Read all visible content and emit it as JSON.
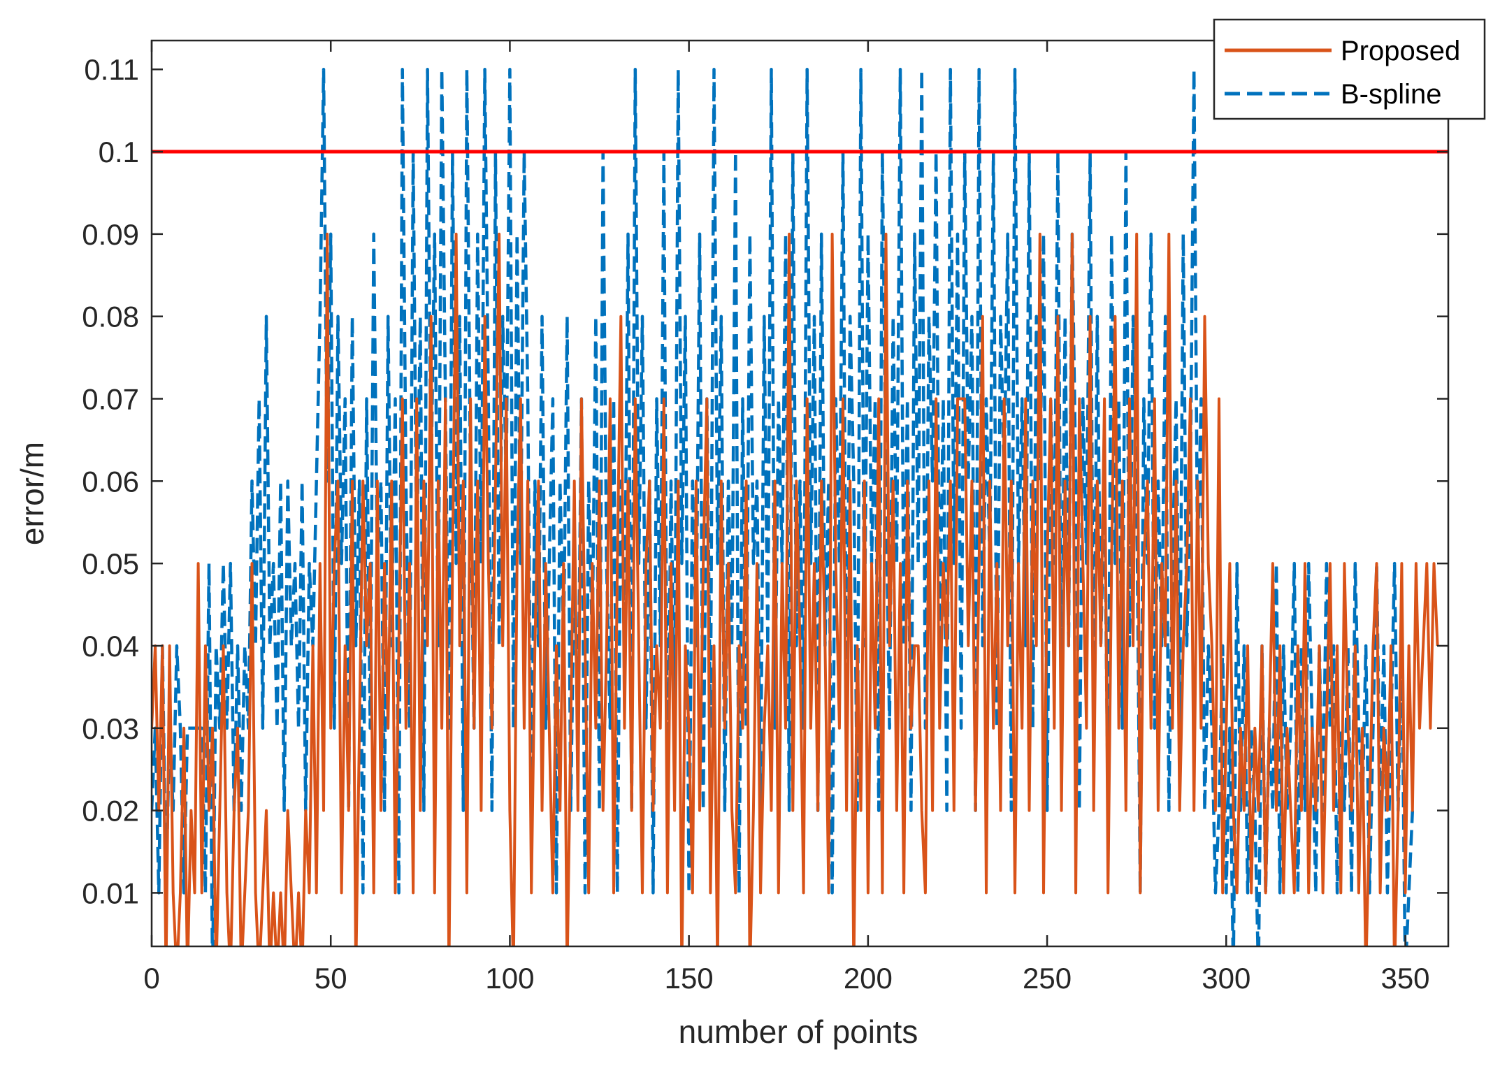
{
  "chart_data": {
    "type": "line",
    "title": "",
    "xlabel": "number of points",
    "ylabel": "error/m",
    "xlim": [
      0,
      362
    ],
    "ylim": [
      0.0035,
      0.1135
    ],
    "xticks": [
      0,
      50,
      100,
      150,
      200,
      250,
      300,
      350
    ],
    "xtick_labels": [
      "0",
      "50",
      "100",
      "150",
      "200",
      "250",
      "300",
      "350"
    ],
    "yticks": [
      0.01,
      0.02,
      0.03,
      0.04,
      0.05,
      0.06,
      0.07,
      0.08,
      0.09,
      0.1,
      0.11
    ],
    "ytick_labels": [
      "0.01",
      "0.02",
      "0.03",
      "0.04",
      "0.05",
      "0.06",
      "0.07",
      "0.08",
      "0.09",
      "0.1",
      "0.11"
    ],
    "grid": false,
    "legend_position": "top-right",
    "colors": {
      "proposed": "#D95319",
      "bspline": "#0072BD",
      "threshold": "#FF0000",
      "axis": "#262626"
    },
    "threshold": {
      "value": 0.1
    },
    "series": [
      {
        "name": "Proposed",
        "style": "solid",
        "values": [
          0.03,
          0.04,
          0.02,
          0.04,
          0.0,
          0.04,
          0.01,
          0.0,
          0.01,
          0.03,
          0.0,
          0.02,
          0.01,
          0.05,
          0.01,
          0.04,
          0.02,
          0.03,
          0.0,
          0.02,
          0.04,
          0.01,
          0.0,
          0.02,
          0.03,
          0.0,
          0.01,
          0.02,
          0.05,
          0.01,
          0.0,
          0.01,
          0.02,
          0.0,
          0.01,
          0.0,
          0.01,
          0.0,
          0.02,
          0.01,
          0.0,
          0.01,
          0.0,
          0.02,
          0.01,
          0.04,
          0.01,
          0.05,
          0.02,
          0.09,
          0.03,
          0.05,
          0.06,
          0.01,
          0.04,
          0.02,
          0.06,
          0.0,
          0.03,
          0.06,
          0.04,
          0.05,
          0.01,
          0.06,
          0.02,
          0.05,
          0.03,
          0.06,
          0.01,
          0.04,
          0.07,
          0.03,
          0.05,
          0.01,
          0.07,
          0.02,
          0.06,
          0.04,
          0.08,
          0.01,
          0.06,
          0.03,
          0.07,
          0.0,
          0.05,
          0.09,
          0.04,
          0.06,
          0.01,
          0.07,
          0.03,
          0.06,
          0.02,
          0.08,
          0.05,
          0.03,
          0.06,
          0.09,
          0.04,
          0.07,
          0.02,
          0.0,
          0.05,
          0.07,
          0.03,
          0.06,
          0.01,
          0.04,
          0.06,
          0.02,
          0.05,
          0.03,
          0.01,
          0.04,
          0.02,
          0.05,
          0.0,
          0.03,
          0.06,
          0.02,
          0.07,
          0.04,
          0.01,
          0.05,
          0.03,
          0.06,
          0.02,
          0.04,
          0.07,
          0.01,
          0.05,
          0.08,
          0.03,
          0.06,
          0.02,
          0.07,
          0.04,
          0.01,
          0.05,
          0.06,
          0.02,
          0.04,
          0.03,
          0.07,
          0.01,
          0.05,
          0.02,
          0.06,
          0.0,
          0.04,
          0.03,
          0.01,
          0.06,
          0.02,
          0.05,
          0.07,
          0.01,
          0.04,
          0.0,
          0.06,
          0.03,
          0.05,
          0.02,
          0.01,
          0.04,
          0.03,
          0.06,
          0.0,
          0.02,
          0.05,
          0.01,
          0.03,
          0.04,
          0.02,
          0.06,
          0.01,
          0.05,
          0.03,
          0.09,
          0.02,
          0.06,
          0.04,
          0.01,
          0.07,
          0.03,
          0.05,
          0.02,
          0.06,
          0.04,
          0.01,
          0.09,
          0.05,
          0.03,
          0.07,
          0.02,
          0.06,
          0.0,
          0.04,
          0.02,
          0.06,
          0.01,
          0.05,
          0.03,
          0.07,
          0.01,
          0.09,
          0.04,
          0.06,
          0.02,
          0.05,
          0.01,
          0.06,
          0.03,
          0.04,
          0.04,
          0.02,
          0.01,
          0.06,
          0.02,
          0.07,
          0.03,
          0.05,
          0.04,
          0.06,
          0.02,
          0.07,
          0.07,
          0.07,
          0.04,
          0.06,
          0.02,
          0.05,
          0.08,
          0.01,
          0.06,
          0.03,
          0.05,
          0.02,
          0.07,
          0.04,
          0.06,
          0.01,
          0.05,
          0.03,
          0.07,
          0.02,
          0.06,
          0.04,
          0.09,
          0.01,
          0.05,
          0.07,
          0.03,
          0.08,
          0.02,
          0.06,
          0.04,
          0.09,
          0.01,
          0.07,
          0.05,
          0.03,
          0.08,
          0.02,
          0.06,
          0.04,
          0.07,
          0.01,
          0.05,
          0.08,
          0.03,
          0.06,
          0.02,
          0.07,
          0.04,
          0.09,
          0.01,
          0.05,
          0.06,
          0.03,
          0.07,
          0.02,
          0.05,
          0.04,
          0.09,
          0.03,
          0.06,
          0.02,
          0.04,
          0.05,
          0.07,
          0.02,
          0.06,
          0.03,
          0.08,
          0.05,
          0.04,
          0.02,
          0.07,
          0.01,
          0.03,
          0.05,
          0.02,
          0.01,
          0.03,
          0.02,
          0.04,
          0.01,
          0.03,
          0.02,
          0.04,
          0.01,
          0.03,
          0.05,
          0.02,
          0.04,
          0.01,
          0.03,
          0.02,
          0.01,
          0.04,
          0.02,
          0.05,
          0.01,
          0.03,
          0.02,
          0.04,
          0.01,
          0.03,
          0.05,
          0.02,
          0.04,
          0.01,
          0.05,
          0.03,
          0.02,
          0.04,
          0.01,
          0.03,
          0.0,
          0.02,
          0.04,
          0.05,
          0.01,
          0.03,
          0.02,
          0.04,
          0.0,
          0.02,
          0.05,
          0.01,
          0.04,
          0.02,
          0.05,
          0.03,
          0.04,
          0.05,
          0.03,
          0.05,
          0.04
        ]
      },
      {
        "name": "B-spline",
        "style": "dashed",
        "values": [
          0.02,
          0.03,
          0.01,
          0.04,
          0.01,
          0.03,
          0.02,
          0.04,
          0.03,
          0.01,
          0.03,
          0.03,
          0.03,
          0.03,
          0.03,
          0.01,
          0.05,
          0.0,
          0.04,
          0.03,
          0.05,
          0.03,
          0.05,
          0.02,
          0.04,
          0.02,
          0.04,
          0.03,
          0.06,
          0.04,
          0.07,
          0.03,
          0.08,
          0.04,
          0.05,
          0.03,
          0.06,
          0.02,
          0.06,
          0.04,
          0.05,
          0.03,
          0.06,
          0.02,
          0.05,
          0.04,
          0.06,
          0.08,
          0.11,
          0.06,
          0.09,
          0.03,
          0.08,
          0.05,
          0.07,
          0.02,
          0.08,
          0.04,
          0.06,
          0.01,
          0.07,
          0.03,
          0.09,
          0.05,
          0.06,
          0.02,
          0.08,
          0.04,
          0.07,
          0.01,
          0.11,
          0.06,
          0.03,
          0.1,
          0.05,
          0.08,
          0.02,
          0.11,
          0.06,
          0.09,
          0.04,
          0.11,
          0.07,
          0.03,
          0.1,
          0.05,
          0.08,
          0.02,
          0.11,
          0.06,
          0.03,
          0.09,
          0.05,
          0.11,
          0.07,
          0.02,
          0.1,
          0.04,
          0.08,
          0.06,
          0.11,
          0.03,
          0.09,
          0.05,
          0.1,
          0.07,
          0.02,
          0.06,
          0.04,
          0.08,
          0.03,
          0.05,
          0.07,
          0.01,
          0.06,
          0.04,
          0.08,
          0.02,
          0.05,
          0.03,
          0.07,
          0.01,
          0.06,
          0.04,
          0.08,
          0.02,
          0.1,
          0.05,
          0.03,
          0.07,
          0.01,
          0.06,
          0.04,
          0.09,
          0.02,
          0.11,
          0.05,
          0.08,
          0.03,
          0.06,
          0.01,
          0.07,
          0.04,
          0.1,
          0.02,
          0.06,
          0.03,
          0.11,
          0.05,
          0.08,
          0.01,
          0.06,
          0.04,
          0.09,
          0.02,
          0.07,
          0.03,
          0.11,
          0.05,
          0.08,
          0.02,
          0.06,
          0.04,
          0.1,
          0.01,
          0.07,
          0.03,
          0.09,
          0.05,
          0.06,
          0.02,
          0.08,
          0.04,
          0.11,
          0.03,
          0.07,
          0.05,
          0.09,
          0.02,
          0.1,
          0.04,
          0.06,
          0.03,
          0.11,
          0.05,
          0.08,
          0.02,
          0.09,
          0.04,
          0.06,
          0.01,
          0.07,
          0.05,
          0.1,
          0.03,
          0.08,
          0.06,
          0.02,
          0.11,
          0.04,
          0.09,
          0.05,
          0.07,
          0.02,
          0.1,
          0.06,
          0.03,
          0.08,
          0.05,
          0.11,
          0.04,
          0.07,
          0.02,
          0.09,
          0.05,
          0.11,
          0.03,
          0.08,
          0.06,
          0.1,
          0.04,
          0.07,
          0.02,
          0.11,
          0.05,
          0.09,
          0.03,
          0.1,
          0.06,
          0.08,
          0.02,
          0.11,
          0.04,
          0.07,
          0.05,
          0.1,
          0.03,
          0.08,
          0.06,
          0.09,
          0.02,
          0.11,
          0.05,
          0.07,
          0.04,
          0.1,
          0.03,
          0.08,
          0.06,
          0.09,
          0.02,
          0.07,
          0.05,
          0.1,
          0.03,
          0.08,
          0.04,
          0.09,
          0.06,
          0.02,
          0.07,
          0.05,
          0.1,
          0.03,
          0.08,
          0.04,
          0.06,
          0.02,
          0.09,
          0.05,
          0.07,
          0.03,
          0.1,
          0.04,
          0.08,
          0.06,
          0.01,
          0.07,
          0.05,
          0.09,
          0.03,
          0.06,
          0.04,
          0.08,
          0.02,
          0.05,
          0.07,
          0.03,
          0.09,
          0.04,
          0.06,
          0.11,
          0.05,
          0.07,
          0.02,
          0.04,
          0.03,
          0.01,
          0.02,
          0.04,
          0.01,
          0.03,
          0.0,
          0.05,
          0.02,
          0.04,
          0.01,
          0.03,
          0.02,
          0.0,
          0.04,
          0.01,
          0.03,
          0.02,
          0.05,
          0.01,
          0.04,
          0.02,
          0.03,
          0.05,
          0.01,
          0.04,
          0.02,
          0.05,
          0.03,
          0.01,
          0.04,
          0.02,
          0.05,
          0.03,
          0.04,
          0.01,
          0.03,
          0.02,
          0.04,
          0.01,
          0.05,
          0.03,
          0.02,
          0.04,
          0.01,
          0.03,
          0.05,
          0.02,
          0.04,
          0.01,
          0.03,
          0.05,
          0.02,
          0.04,
          0.0,
          0.01,
          0.02
        ]
      }
    ]
  }
}
